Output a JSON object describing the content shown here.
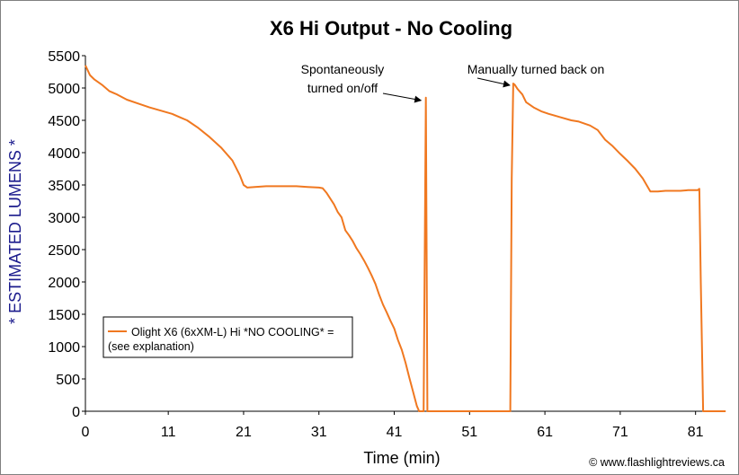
{
  "chart_data": {
    "type": "line",
    "title": "X6 Hi Output - No Cooling",
    "xlabel": "Time (min)",
    "ylabel": "* ESTIMATED LUMENS *",
    "xlim": [
      0,
      84.5
    ],
    "ylim": [
      0,
      5500
    ],
    "x_ticks": [
      0,
      11,
      21,
      31,
      41,
      51,
      61,
      71,
      81
    ],
    "y_ticks": [
      0,
      500,
      1000,
      1500,
      2000,
      2500,
      3000,
      3500,
      4000,
      4500,
      5000,
      5500
    ],
    "grid": false,
    "legend_position": "lower-left",
    "series": [
      {
        "name": "Olight X6 (6xXM-L) Hi *NO COOLING* = (see explanation)",
        "color": "#f07820",
        "x": [
          0,
          0.6,
          1.2,
          2.2,
          3.2,
          4.2,
          5.5,
          7,
          8.5,
          10,
          11.5,
          12.5,
          13.5,
          15,
          16.5,
          18,
          19.5,
          20.5,
          21,
          21.5,
          22.5,
          24,
          26,
          28,
          29.5,
          31,
          31.5,
          32,
          33,
          33.5,
          34,
          34.5,
          35,
          35.5,
          36,
          36.5,
          37,
          37.5,
          38,
          38.5,
          39,
          39.5,
          40,
          40.5,
          41,
          41.5,
          42,
          42.5,
          43,
          43.5,
          44,
          44.3,
          44.6,
          44.9,
          45.2,
          45.4,
          45.6,
          45.8,
          46,
          46.2,
          56.4,
          56.6,
          56.8,
          57,
          57.4,
          58,
          58.5,
          59.5,
          60.5,
          61.5,
          63,
          64.5,
          65.5,
          67,
          68,
          69,
          70,
          71,
          72,
          73,
          74,
          75,
          76,
          77,
          78,
          79,
          80,
          81.3,
          81.5,
          81.7,
          82,
          82.3,
          85
        ],
        "values": [
          5350,
          5200,
          5130,
          5050,
          4950,
          4900,
          4820,
          4760,
          4700,
          4650,
          4600,
          4550,
          4500,
          4380,
          4240,
          4080,
          3880,
          3650,
          3500,
          3460,
          3470,
          3480,
          3480,
          3480,
          3470,
          3460,
          3450,
          3380,
          3200,
          3080,
          3000,
          2800,
          2720,
          2630,
          2520,
          2430,
          2330,
          2220,
          2100,
          1970,
          1800,
          1650,
          1530,
          1400,
          1280,
          1100,
          950,
          750,
          520,
          300,
          80,
          0,
          0,
          0,
          4850,
          0,
          0,
          0,
          0,
          0,
          0,
          3600,
          5070,
          5050,
          4980,
          4900,
          4780,
          4700,
          4640,
          4600,
          4550,
          4500,
          4480,
          4420,
          4350,
          4200,
          4100,
          3980,
          3870,
          3750,
          3600,
          3400,
          3400,
          3410,
          3410,
          3410,
          3420,
          3420,
          3440,
          2000,
          0,
          0,
          0
        ]
      }
    ],
    "annotations": [
      {
        "text_lines": [
          "Spontaneously",
          "turned on/off"
        ],
        "x": 44.9,
        "y": 4850
      },
      {
        "text_lines": [
          "Manually turned back on"
        ],
        "x": 56.8,
        "y": 5070
      }
    ]
  },
  "credit": "© www.flashlightreviews.ca"
}
